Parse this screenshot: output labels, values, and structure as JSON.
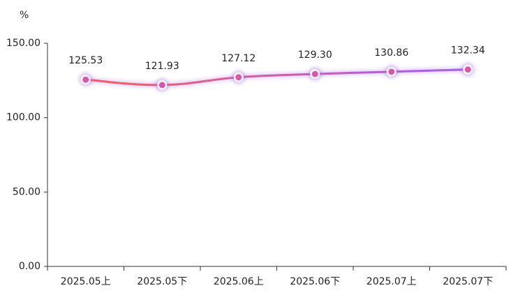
{
  "chart_data": {
    "type": "line",
    "y_label": "%",
    "categories": [
      "2025.05上",
      "2025.05下",
      "2025.06上",
      "2025.06下",
      "2025.07上",
      "2025.07下"
    ],
    "series": [
      {
        "colors": [
          "#f4605a",
          "#a25ff4"
        ],
        "marker_color": "#d855b0",
        "values": [
          125.53,
          121.93,
          127.12,
          129.3,
          130.86,
          132.34
        ],
        "value_labels": [
          "125.53",
          "121.93",
          "127.12",
          "129.30",
          "130.86",
          "132.34"
        ]
      }
    ],
    "ylim": [
      0,
      150
    ],
    "yticks": [
      {
        "value": 0,
        "label": "0.00"
      },
      {
        "value": 50,
        "label": "50.00"
      },
      {
        "value": 100,
        "label": "100.00"
      },
      {
        "value": 150,
        "label": "150.00"
      }
    ]
  }
}
